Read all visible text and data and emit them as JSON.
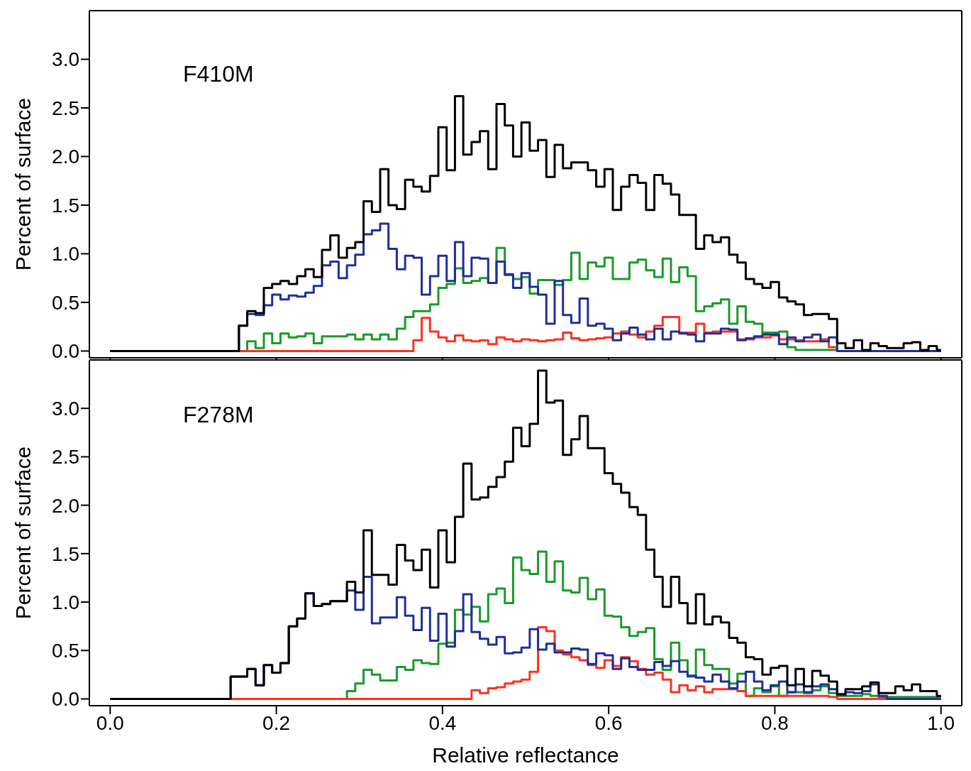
{
  "chart_data": [
    {
      "type": "histogram",
      "annotations": [
        "F410M"
      ],
      "ylabel": "Percent of surface",
      "tick_labels": "y",
      "xlim": [
        -0.025,
        1.025
      ],
      "xticks": [
        {
          "value": 0,
          "label": null
        },
        {
          "value": 0.2,
          "label": null
        },
        {
          "value": 0.4,
          "label": null
        },
        {
          "value": 0.6,
          "label": null
        },
        {
          "value": 0.8,
          "label": null
        },
        {
          "value": 1,
          "label": null
        }
      ],
      "ylim": [
        -0.07,
        3.5
      ],
      "yticks": [
        {
          "value": 0,
          "label": "0.0"
        },
        {
          "value": 0.5,
          "label": "0.5"
        },
        {
          "value": 1,
          "label": "1.0"
        },
        {
          "value": 1.5,
          "label": "1.5"
        },
        {
          "value": 2,
          "label": "2.0"
        },
        {
          "value": 2.5,
          "label": "2.5"
        },
        {
          "value": 3,
          "label": "3.0"
        }
      ],
      "bins": [
        0,
        0.155,
        0.165,
        0.175,
        0.185,
        0.195,
        0.205,
        0.215,
        0.225,
        0.235,
        0.245,
        0.255,
        0.265,
        0.275,
        0.285,
        0.295,
        0.305,
        0.315,
        0.325,
        0.335,
        0.345,
        0.355,
        0.365,
        0.375,
        0.385,
        0.395,
        0.405,
        0.415,
        0.425,
        0.435,
        0.445,
        0.455,
        0.465,
        0.475,
        0.485,
        0.495,
        0.505,
        0.515,
        0.525,
        0.535,
        0.545,
        0.555,
        0.565,
        0.575,
        0.585,
        0.595,
        0.605,
        0.615,
        0.625,
        0.635,
        0.645,
        0.655,
        0.665,
        0.675,
        0.685,
        0.695,
        0.705,
        0.715,
        0.725,
        0.735,
        0.745,
        0.755,
        0.765,
        0.775,
        0.785,
        0.795,
        0.805,
        0.815,
        0.825,
        0.835,
        0.845,
        0.855,
        0.865,
        0.875,
        0.885,
        0.895,
        0.905,
        0.915,
        0.925,
        0.935,
        0.945,
        0.955,
        0.965,
        0.975,
        0.985,
        0.995,
        1
      ],
      "series": [
        {
          "color": "#1a9a2a",
          "values": [
            0,
            0,
            0.1,
            0.03,
            0.18,
            0.08,
            0.18,
            0.14,
            0.15,
            0.18,
            0.08,
            0.15,
            0.15,
            0.15,
            0.17,
            0.12,
            0.17,
            0.12,
            0.17,
            0.12,
            0.23,
            0.35,
            0.41,
            0.41,
            0.48,
            0.65,
            0.69,
            0.85,
            0.7,
            0.72,
            0.75,
            0.7,
            1.06,
            0.78,
            0.74,
            0.76,
            0.59,
            0.73,
            0.73,
            0.68,
            0.73,
            1.01,
            0.74,
            0.91,
            0.87,
            0.96,
            0.74,
            0.74,
            0.91,
            0.94,
            0.83,
            0.76,
            0.95,
            0.71,
            0.86,
            0.77,
            0.41,
            0.46,
            0.49,
            0.53,
            0.28,
            0.46,
            0.3,
            0.28,
            0.19,
            0.19,
            0.2,
            0.04,
            0.01,
            0.01,
            0.01,
            0.01,
            0.01,
            0,
            0,
            0,
            0,
            0,
            0,
            0,
            0,
            0,
            0,
            0,
            0,
            0
          ]
        },
        {
          "color": "#ff3020",
          "values": [
            0,
            0,
            0,
            0,
            0,
            0,
            0,
            0,
            0,
            0,
            0,
            0,
            0,
            0,
            0,
            0,
            0,
            0,
            0,
            0,
            0,
            0,
            0.11,
            0.34,
            0.2,
            0.14,
            0.1,
            0.16,
            0.11,
            0.1,
            0.11,
            0.07,
            0.14,
            0.12,
            0.1,
            0.12,
            0.11,
            0.1,
            0.11,
            0.12,
            0.19,
            0.13,
            0.11,
            0.12,
            0.13,
            0.14,
            0.18,
            0.2,
            0.17,
            0.14,
            0.2,
            0.26,
            0.35,
            0.35,
            0.19,
            0.19,
            0.28,
            0.19,
            0.2,
            0.2,
            0.2,
            0.12,
            0.12,
            0.14,
            0.14,
            0.16,
            0.12,
            0.12,
            0.11,
            0.1,
            0.1,
            0.12,
            0.04,
            0,
            0,
            0,
            0,
            0,
            0,
            0,
            0,
            0,
            0,
            0,
            0,
            0
          ]
        },
        {
          "color": "#1f2f9a",
          "values": [
            0,
            0.26,
            0.38,
            0.37,
            0.47,
            0.58,
            0.53,
            0.57,
            0.56,
            0.6,
            0.67,
            0.88,
            0.92,
            0.75,
            0.88,
            0.99,
            1.2,
            1.24,
            1.31,
            1.05,
            0.84,
            0.98,
            0.96,
            0.58,
            0.77,
            0.98,
            0.72,
            1.12,
            0.77,
            0.96,
            0.95,
            0.7,
            0.92,
            0.79,
            0.65,
            0.8,
            0.66,
            0.58,
            0.28,
            0.72,
            0.37,
            0.29,
            0.54,
            0.26,
            0.28,
            0.23,
            0.11,
            0.18,
            0.24,
            0.17,
            0.12,
            0.23,
            0.12,
            0.2,
            0.18,
            0.17,
            0.1,
            0.18,
            0.18,
            0.23,
            0.22,
            0.11,
            0.13,
            0.15,
            0.17,
            0.17,
            0.07,
            0.14,
            0.1,
            0.14,
            0.17,
            0.1,
            0.14,
            0,
            0,
            0,
            0,
            0,
            0,
            0,
            0,
            0,
            0,
            0,
            0,
            0
          ]
        },
        {
          "color": "#000000",
          "values": [
            0,
            0.26,
            0.41,
            0.39,
            0.65,
            0.69,
            0.72,
            0.69,
            0.77,
            0.84,
            0.76,
            1.04,
            1.19,
            0.96,
            1.06,
            1.12,
            1.54,
            1.43,
            1.87,
            1.5,
            1.46,
            1.76,
            1.69,
            1.64,
            1.8,
            2.3,
            1.86,
            2.62,
            2.02,
            2.15,
            2.26,
            1.87,
            2.54,
            2.32,
            2.0,
            2.35,
            2.06,
            2.17,
            1.79,
            2.12,
            1.88,
            1.94,
            1.94,
            1.86,
            1.69,
            1.87,
            1.45,
            1.69,
            1.81,
            1.73,
            1.45,
            1.81,
            1.72,
            1.61,
            1.4,
            1.4,
            1.05,
            1.19,
            1.12,
            1.17,
            0.99,
            0.91,
            0.74,
            0.69,
            0.65,
            0.71,
            0.55,
            0.51,
            0.48,
            0.37,
            0.38,
            0.38,
            0.33,
            0.08,
            0.03,
            0.11,
            0.01,
            0.08,
            0.05,
            0.03,
            0.03,
            0.08,
            0.09,
            0.01,
            0.05,
            0.01
          ]
        }
      ]
    },
    {
      "type": "histogram",
      "annotations": [
        "F278M"
      ],
      "xlabel": "Relative reflectance",
      "ylabel": "Percent of surface",
      "xlim": [
        -0.025,
        1.025
      ],
      "xticks": [
        {
          "value": 0,
          "label": "0.0"
        },
        {
          "value": 0.2,
          "label": "0.2"
        },
        {
          "value": 0.4,
          "label": "0.4"
        },
        {
          "value": 0.6,
          "label": "0.6"
        },
        {
          "value": 0.8,
          "label": "0.8"
        },
        {
          "value": 1,
          "label": "1.0"
        }
      ],
      "ylim": [
        -0.07,
        3.5
      ],
      "yticks": [
        {
          "value": 0,
          "label": "0.0"
        },
        {
          "value": 0.5,
          "label": "0.5"
        },
        {
          "value": 1,
          "label": "1.0"
        },
        {
          "value": 1.5,
          "label": "1.5"
        },
        {
          "value": 2,
          "label": "2.0"
        },
        {
          "value": 2.5,
          "label": "2.5"
        },
        {
          "value": 3,
          "label": "3.0"
        }
      ],
      "bins": [
        0,
        0.145,
        0.155,
        0.165,
        0.175,
        0.185,
        0.195,
        0.205,
        0.215,
        0.225,
        0.235,
        0.245,
        0.255,
        0.265,
        0.275,
        0.285,
        0.295,
        0.305,
        0.315,
        0.325,
        0.335,
        0.345,
        0.355,
        0.365,
        0.375,
        0.385,
        0.395,
        0.405,
        0.415,
        0.425,
        0.435,
        0.445,
        0.455,
        0.465,
        0.475,
        0.485,
        0.495,
        0.505,
        0.515,
        0.525,
        0.535,
        0.545,
        0.555,
        0.565,
        0.575,
        0.585,
        0.595,
        0.605,
        0.615,
        0.625,
        0.635,
        0.645,
        0.655,
        0.665,
        0.675,
        0.685,
        0.695,
        0.705,
        0.715,
        0.725,
        0.735,
        0.745,
        0.755,
        0.765,
        0.775,
        0.785,
        0.795,
        0.805,
        0.815,
        0.825,
        0.835,
        0.845,
        0.855,
        0.865,
        0.875,
        0.885,
        0.895,
        0.905,
        0.915,
        0.925,
        0.935,
        0.945,
        0.955,
        0.965,
        0.975,
        0.985,
        0.995,
        1
      ],
      "series": [
        {
          "color": "#1a9a2a",
          "values": [
            0,
            0,
            0,
            0,
            0,
            0,
            0,
            0,
            0,
            0,
            0,
            0,
            0,
            0,
            0,
            0.08,
            0.16,
            0.3,
            0.25,
            0.19,
            0.19,
            0.33,
            0.3,
            0.4,
            0.37,
            0.36,
            0.57,
            0.58,
            0.92,
            0.87,
            0.95,
            0.8,
            1.08,
            1.14,
            0.99,
            1.46,
            1.33,
            1.29,
            1.52,
            1.21,
            1.42,
            1.12,
            1.1,
            1.25,
            1.03,
            1.13,
            0.86,
            0.85,
            0.74,
            0.65,
            0.69,
            0.73,
            0.41,
            0.3,
            0.58,
            0.4,
            0.23,
            0.51,
            0.35,
            0.31,
            0.31,
            0.16,
            0.26,
            0.03,
            0.11,
            0.07,
            0.13,
            0.03,
            0.07,
            0.07,
            0.06,
            0.09,
            0.13,
            0.06,
            0.03,
            0.03,
            0.03,
            0.05,
            0.03,
            0.02,
            0.02,
            0.02,
            0.02,
            0.02,
            0.02,
            0.02,
            0.02
          ]
        },
        {
          "color": "#ff3020",
          "values": [
            0,
            0,
            0,
            0,
            0,
            0,
            0,
            0,
            0,
            0,
            0,
            0,
            0,
            0,
            0,
            0,
            0,
            0,
            0,
            0,
            0,
            0,
            0,
            0,
            0,
            0,
            0,
            0,
            0,
            0,
            0.09,
            0.06,
            0.11,
            0.12,
            0.16,
            0.18,
            0.2,
            0.28,
            0.74,
            0.7,
            0.5,
            0.46,
            0.43,
            0.4,
            0.35,
            0.32,
            0.4,
            0.34,
            0.43,
            0.39,
            0.31,
            0.25,
            0.27,
            0.2,
            0.07,
            0.14,
            0.09,
            0.13,
            0.07,
            0.1,
            0.1,
            0.1,
            0.08,
            0.03,
            0.03,
            0.03,
            0.03,
            0.03,
            0.03,
            0.03,
            0.03,
            0.03,
            0.03,
            0.02,
            0,
            0,
            0,
            0,
            0,
            0,
            0,
            0,
            0,
            0,
            0,
            0,
            0
          ]
        },
        {
          "color": "#1f2f9a",
          "values": [
            0,
            0.23,
            0.23,
            0.31,
            0.14,
            0.35,
            0.27,
            0.37,
            0.75,
            0.83,
            1.09,
            0.96,
            0.98,
            1.01,
            1.01,
            1.12,
            0.92,
            1.26,
            0.78,
            0.84,
            0.84,
            1.05,
            0.86,
            0.71,
            0.94,
            0.6,
            0.88,
            0.54,
            0.7,
            1.08,
            0.69,
            0.62,
            0.56,
            0.64,
            0.47,
            0.48,
            0.53,
            0.72,
            0.51,
            0.57,
            0.48,
            0.48,
            0.52,
            0.51,
            0.36,
            0.47,
            0.45,
            0.31,
            0.42,
            0.33,
            0.3,
            0.3,
            0.38,
            0.34,
            0.39,
            0.28,
            0.24,
            0.22,
            0.18,
            0.25,
            0.18,
            0.11,
            0.18,
            0.28,
            0.18,
            0.09,
            0.14,
            0.18,
            0.07,
            0.15,
            0.07,
            0.13,
            0.15,
            0.1,
            0.04,
            0.07,
            0.06,
            0.08,
            0.15,
            0.03,
            0,
            0,
            0,
            0,
            0,
            0,
            0
          ]
        },
        {
          "color": "#000000",
          "values": [
            0,
            0.23,
            0.23,
            0.31,
            0.14,
            0.35,
            0.27,
            0.37,
            0.75,
            0.83,
            1.09,
            0.96,
            0.98,
            1.01,
            1.01,
            1.21,
            1.1,
            1.74,
            1.28,
            1.28,
            1.18,
            1.59,
            1.43,
            1.33,
            1.54,
            1.15,
            1.74,
            1.41,
            1.88,
            2.43,
            2.06,
            2.08,
            2.19,
            2.29,
            2.45,
            2.8,
            2.61,
            2.84,
            3.39,
            3.06,
            3.08,
            2.52,
            2.68,
            2.92,
            2.59,
            2.59,
            2.33,
            2.22,
            2.13,
            1.98,
            1.9,
            1.54,
            1.26,
            0.95,
            1.26,
            0.99,
            0.78,
            1.08,
            0.77,
            0.85,
            0.79,
            0.63,
            0.58,
            0.43,
            0.41,
            0.25,
            0.32,
            0.34,
            0.14,
            0.31,
            0.13,
            0.29,
            0.24,
            0.18,
            0.05,
            0.1,
            0.1,
            0.13,
            0.17,
            0.06,
            0.06,
            0.13,
            0.09,
            0.15,
            0.08,
            0.08,
            0.03
          ]
        }
      ]
    }
  ]
}
